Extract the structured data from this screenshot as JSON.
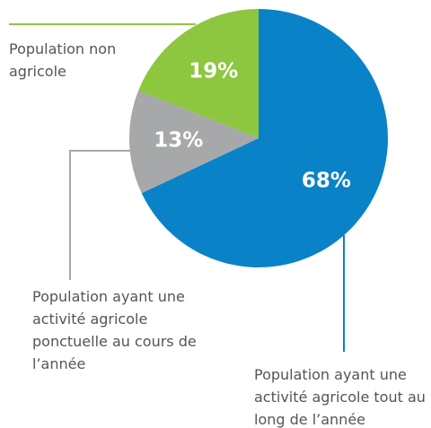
{
  "chart_data": {
    "type": "pie",
    "categories": [
      "Population ayant une activité agricole tout au long de l’année",
      "Population ayant une activité agricole ponctuelle au cours de l’année",
      "Population non agricole"
    ],
    "values": [
      68,
      13,
      19
    ],
    "value_labels": [
      "68%",
      "13%",
      "19%"
    ],
    "colors": [
      "#0a82c8",
      "#a7a8aa",
      "#8dc63f"
    ]
  }
}
